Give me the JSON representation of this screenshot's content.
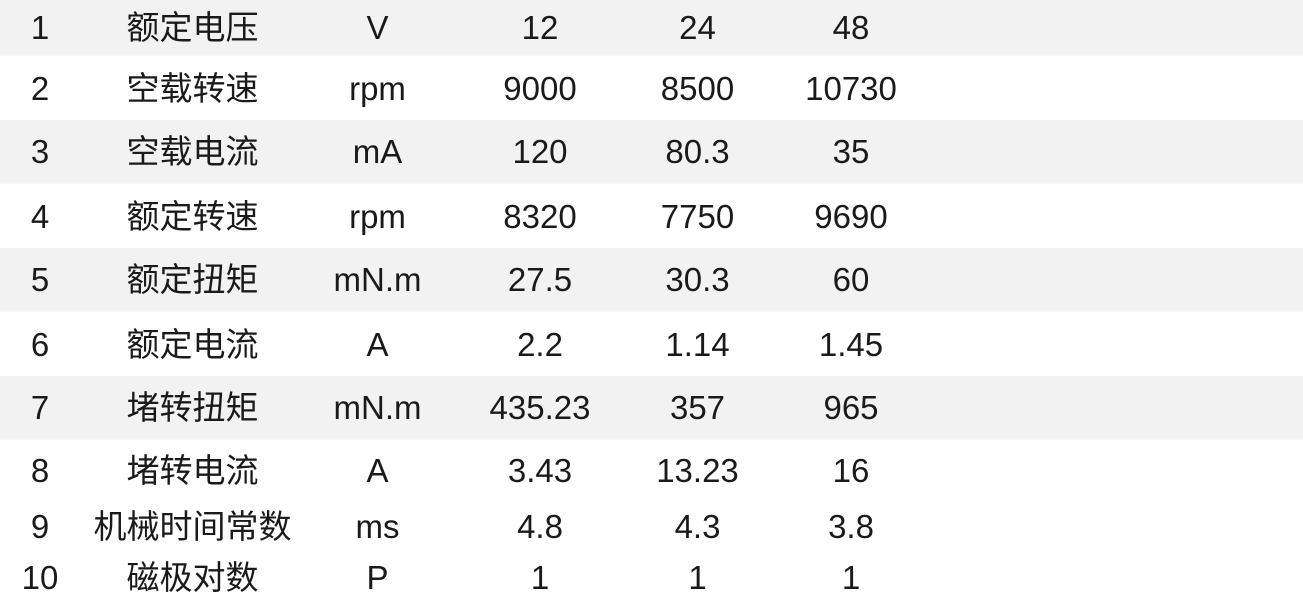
{
  "table": {
    "stripe_color": "#f2f2f2",
    "text_color": "#1a1a1a",
    "value_columns_count": 3,
    "rows": [
      {
        "no": "1",
        "parameter": "额定电压",
        "unit": "V",
        "v12": "12",
        "v24": "24",
        "v48": "48"
      },
      {
        "no": "2",
        "parameter": "空载转速",
        "unit": "rpm",
        "v12": "9000",
        "v24": "8500",
        "v48": "10730"
      },
      {
        "no": "3",
        "parameter": "空载电流",
        "unit": "mA",
        "v12": "120",
        "v24": "80.3",
        "v48": "35"
      },
      {
        "no": "4",
        "parameter": "额定转速",
        "unit": "rpm",
        "v12": "8320",
        "v24": "7750",
        "v48": "9690"
      },
      {
        "no": "5",
        "parameter": "额定扭矩",
        "unit": "mN.m",
        "v12": "27.5",
        "v24": "30.3",
        "v48": "60"
      },
      {
        "no": "6",
        "parameter": "额定电流",
        "unit": "A",
        "v12": "2.2",
        "v24": "1.14",
        "v48": "1.45"
      },
      {
        "no": "7",
        "parameter": "堵转扭矩",
        "unit": "mN.m",
        "v12": "435.23",
        "v24": "357",
        "v48": "965"
      },
      {
        "no": "8",
        "parameter": "堵转电流",
        "unit": "A",
        "v12": "3.43",
        "v24": "13.23",
        "v48": "16"
      },
      {
        "no": "9",
        "parameter": "机械时间常数",
        "unit": "ms",
        "v12": "4.8",
        "v24": "4.3",
        "v48": "3.8"
      },
      {
        "no": "10",
        "parameter": "磁极对数",
        "unit": "P",
        "v12": "1",
        "v24": "1",
        "v48": "1"
      }
    ]
  }
}
